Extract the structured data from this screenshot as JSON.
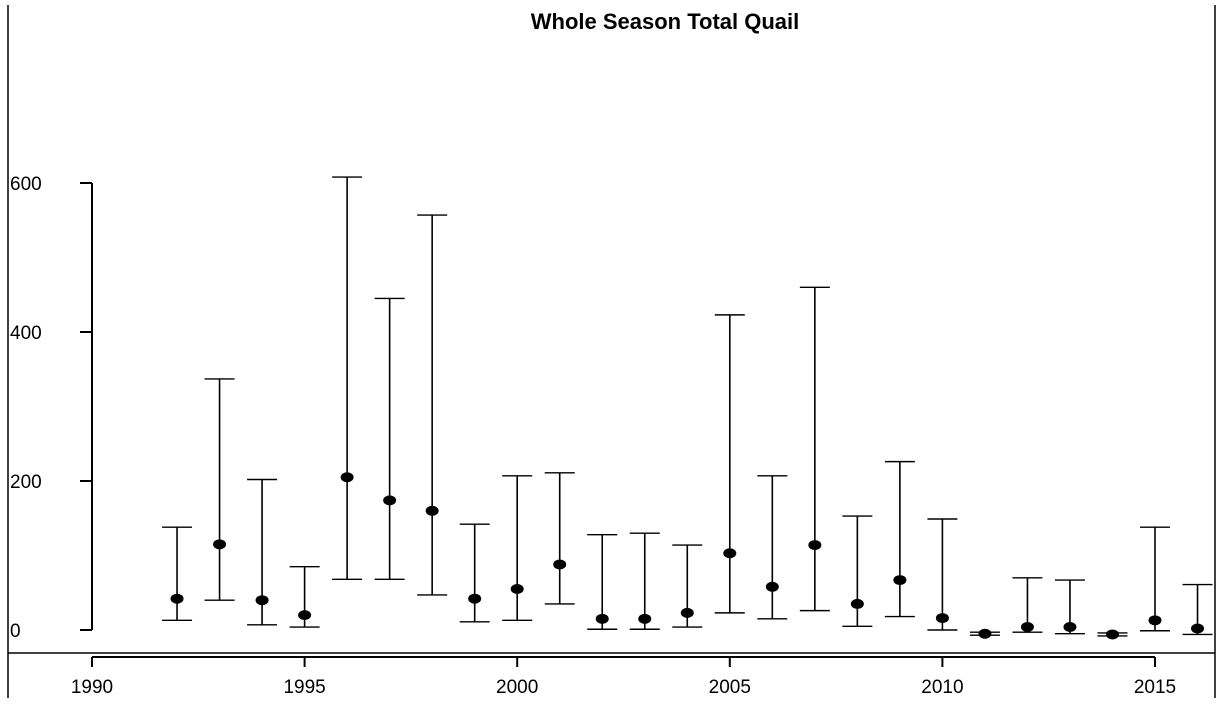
{
  "chart_data": {
    "type": "scatter",
    "title": "Whole Season Total Quail",
    "xlabel": "",
    "ylabel": "",
    "xlim": [
      1990,
      2016.5
    ],
    "ylim": [
      -25,
      720
    ],
    "x_ticks": [
      1990,
      1995,
      2000,
      2005,
      2010,
      2015
    ],
    "y_ticks": [
      0,
      200,
      400,
      600
    ],
    "grid": false,
    "series": [
      {
        "points": [
          {
            "x": 1992,
            "y": 42,
            "lower": 13,
            "upper": 138
          },
          {
            "x": 1993,
            "y": 115,
            "lower": 40,
            "upper": 337
          },
          {
            "x": 1994,
            "y": 40,
            "lower": 7,
            "upper": 202
          },
          {
            "x": 1995,
            "y": 20,
            "lower": 4,
            "upper": 85
          },
          {
            "x": 1996,
            "y": 205,
            "lower": 68,
            "upper": 608
          },
          {
            "x": 1997,
            "y": 174,
            "lower": 68,
            "upper": 445
          },
          {
            "x": 1998,
            "y": 160,
            "lower": 47,
            "upper": 557
          },
          {
            "x": 1999,
            "y": 42,
            "lower": 11,
            "upper": 142
          },
          {
            "x": 2000,
            "y": 55,
            "lower": 13,
            "upper": 207
          },
          {
            "x": 2001,
            "y": 88,
            "lower": 35,
            "upper": 211
          },
          {
            "x": 2002,
            "y": 15,
            "lower": 1,
            "upper": 128
          },
          {
            "x": 2003,
            "y": 15,
            "lower": 1,
            "upper": 130
          },
          {
            "x": 2004,
            "y": 23,
            "lower": 4,
            "upper": 114
          },
          {
            "x": 2005,
            "y": 103,
            "lower": 23,
            "upper": 423
          },
          {
            "x": 2006,
            "y": 58,
            "lower": 15,
            "upper": 207
          },
          {
            "x": 2007,
            "y": 114,
            "lower": 26,
            "upper": 460
          },
          {
            "x": 2008,
            "y": 35,
            "lower": 5,
            "upper": 153
          },
          {
            "x": 2009,
            "y": 67,
            "lower": 18,
            "upper": 226
          },
          {
            "x": 2010,
            "y": 16,
            "lower": 0,
            "upper": 149
          },
          {
            "x": 2011,
            "y": -5,
            "lower": -7,
            "upper": -3
          },
          {
            "x": 2012,
            "y": 4,
            "lower": -3,
            "upper": 70
          },
          {
            "x": 2013,
            "y": 4,
            "lower": -5,
            "upper": 67
          },
          {
            "x": 2014,
            "y": -6,
            "lower": -8,
            "upper": -4
          },
          {
            "x": 2015,
            "y": 13,
            "lower": -1,
            "upper": 138
          },
          {
            "x": 2016,
            "y": 2,
            "lower": -6,
            "upper": 61
          }
        ]
      }
    ]
  }
}
